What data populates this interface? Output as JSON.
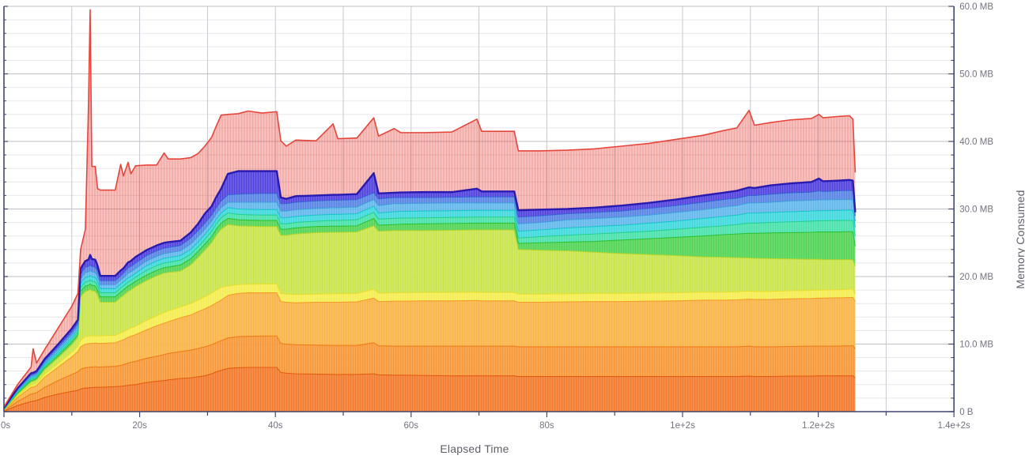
{
  "chart_data": {
    "type": "area",
    "title": "",
    "xlabel": "Elapsed Time",
    "ylabel": "Memory Consumed",
    "x_unit": "s",
    "y_unit": "MB",
    "xlim": [
      0,
      140
    ],
    "ylim": [
      0,
      60
    ],
    "grid": {
      "x_step": 10,
      "y_minor_step": 2,
      "y_major_step": 10
    },
    "legend_position": "none",
    "stacking": "values are cumulative stack-top boundaries in MB",
    "x_ticks": [
      {
        "t": 0,
        "label": "0s"
      },
      {
        "t": 10,
        "label": ""
      },
      {
        "t": 20,
        "label": "20s"
      },
      {
        "t": 30,
        "label": ""
      },
      {
        "t": 40,
        "label": "40s"
      },
      {
        "t": 50,
        "label": ""
      },
      {
        "t": 60,
        "label": "60s"
      },
      {
        "t": 70,
        "label": ""
      },
      {
        "t": 80,
        "label": "80s"
      },
      {
        "t": 90,
        "label": ""
      },
      {
        "t": 100,
        "label": "1e+2s"
      },
      {
        "t": 110,
        "label": ""
      },
      {
        "t": 120,
        "label": "1.2e+2s"
      },
      {
        "t": 130,
        "label": ""
      },
      {
        "t": 140,
        "label": "1.4e+2s"
      }
    ],
    "y_ticks": [
      {
        "v": 0,
        "label": "0 B"
      },
      {
        "v": 10,
        "label": "10.0 MB"
      },
      {
        "v": 20,
        "label": "20.0 MB"
      },
      {
        "v": 30,
        "label": "30.0 MB"
      },
      {
        "v": 40,
        "label": "40.0 MB"
      },
      {
        "v": 50,
        "label": "50.0 MB"
      },
      {
        "v": 60,
        "label": "60.0 MB"
      }
    ],
    "colors": {
      "axis": "#41466e",
      "grid_minor": "#e7e7ec",
      "grid_major": "#bfbfc8",
      "grid_vertical": "#c7c7cf",
      "tick_label": "#73737f",
      "axis_title": "#5f6068"
    },
    "x": [
      0,
      2,
      4,
      4.3,
      4.8,
      6,
      8,
      10,
      10.9,
      11.3,
      12,
      12.45,
      12.7,
      12.95,
      13.45,
      13.8,
      14.2,
      16.4,
      17.2,
      17.6,
      18.3,
      18.7,
      19.4,
      21,
      22.5,
      23.6,
      24.2,
      26,
      27.5,
      28.6,
      29.6,
      30.6,
      31.3,
      32,
      33,
      34.5,
      36,
      38,
      40.2,
      40.8,
      41.6,
      43,
      46,
      48.5,
      49.2,
      52,
      54.5,
      55.2,
      57.5,
      58.5,
      62,
      66,
      69.7,
      70.4,
      73,
      75.2,
      75.8,
      79,
      83,
      87,
      91,
      95,
      99,
      103,
      106,
      108,
      109.8,
      110.6,
      113,
      116,
      119,
      120.1,
      120.7,
      123,
      124.6,
      125.1,
      125.45
    ],
    "series": [
      {
        "name": "dark-orange",
        "fill": "#F2701D",
        "line": "#E45C10",
        "cum": [
          0.05,
          0.9,
          1.5,
          1.55,
          1.65,
          2.1,
          2.6,
          3.0,
          3.15,
          3.35,
          3.5,
          3.5,
          3.55,
          3.55,
          3.6,
          3.6,
          3.6,
          3.7,
          3.75,
          3.8,
          3.9,
          3.95,
          4.0,
          4.3,
          4.5,
          4.6,
          4.7,
          4.9,
          5.0,
          5.15,
          5.3,
          5.6,
          5.9,
          6.1,
          6.4,
          6.5,
          6.55,
          6.55,
          6.55,
          5.8,
          5.7,
          5.6,
          5.55,
          5.5,
          5.5,
          5.5,
          5.6,
          5.45,
          5.4,
          5.4,
          5.35,
          5.3,
          5.3,
          5.3,
          5.3,
          5.3,
          5.2,
          5.2,
          5.2,
          5.2,
          5.2,
          5.2,
          5.2,
          5.2,
          5.2,
          5.2,
          5.25,
          5.2,
          5.2,
          5.25,
          5.25,
          5.3,
          5.3,
          5.3,
          5.3,
          5.3,
          5.0
        ]
      },
      {
        "name": "orange",
        "fill": "#F78F28",
        "line": "#EE7D19",
        "cum": [
          0.1,
          1.5,
          2.6,
          2.65,
          2.8,
          3.6,
          4.6,
          5.5,
          5.9,
          6.3,
          6.5,
          6.55,
          6.6,
          6.6,
          6.65,
          6.6,
          6.6,
          6.7,
          6.85,
          6.95,
          7.2,
          7.3,
          7.45,
          7.9,
          8.2,
          8.45,
          8.6,
          8.9,
          9.1,
          9.35,
          9.6,
          9.9,
          10.2,
          10.5,
          10.9,
          11.1,
          11.15,
          11.2,
          11.2,
          10.1,
          10.0,
          9.9,
          9.85,
          9.8,
          9.8,
          9.8,
          10.2,
          9.75,
          9.7,
          9.7,
          9.7,
          9.7,
          9.7,
          9.7,
          9.7,
          9.7,
          9.6,
          9.6,
          9.6,
          9.6,
          9.6,
          9.6,
          9.6,
          9.6,
          9.6,
          9.6,
          9.7,
          9.6,
          9.6,
          9.65,
          9.7,
          9.7,
          9.7,
          9.7,
          9.75,
          9.75,
          9.3
        ]
      },
      {
        "name": "amber",
        "fill": "#F9AE38",
        "line": "#F29D27",
        "cum": [
          0.15,
          2.1,
          3.6,
          3.65,
          3.85,
          5.1,
          6.6,
          8.1,
          8.9,
          9.6,
          10.0,
          10.05,
          10.1,
          10.1,
          10.15,
          10.1,
          10.1,
          10.2,
          10.5,
          10.65,
          11.0,
          11.15,
          11.4,
          12.1,
          12.7,
          13.1,
          13.3,
          13.9,
          14.3,
          14.8,
          15.2,
          15.7,
          16.1,
          16.5,
          17.2,
          17.5,
          17.6,
          17.6,
          17.6,
          16.3,
          16.2,
          16.1,
          16.2,
          16.2,
          16.2,
          16.25,
          16.8,
          16.3,
          16.35,
          16.35,
          16.4,
          16.4,
          16.45,
          16.4,
          16.4,
          16.4,
          16.2,
          16.2,
          16.25,
          16.3,
          16.3,
          16.35,
          16.4,
          16.5,
          16.5,
          16.55,
          16.65,
          16.6,
          16.6,
          16.7,
          16.75,
          16.8,
          16.8,
          16.85,
          16.9,
          16.9,
          16.3
        ]
      },
      {
        "name": "yellow",
        "fill": "#F4EC43",
        "line": "#E8DE2E",
        "cum": [
          0.2,
          2.35,
          3.95,
          4.0,
          4.2,
          5.55,
          7.15,
          8.8,
          9.7,
          10.6,
          11.1,
          11.15,
          11.25,
          11.2,
          11.25,
          11.2,
          11.2,
          11.3,
          11.65,
          11.8,
          12.2,
          12.4,
          12.65,
          13.5,
          14.2,
          14.65,
          14.9,
          15.5,
          16.0,
          16.5,
          17.0,
          17.55,
          18.0,
          18.4,
          18.6,
          18.8,
          18.85,
          18.9,
          18.9,
          17.5,
          17.4,
          17.35,
          17.4,
          17.45,
          17.45,
          17.5,
          18.1,
          17.55,
          17.6,
          17.6,
          17.65,
          17.65,
          17.7,
          17.65,
          17.65,
          17.65,
          17.4,
          17.4,
          17.45,
          17.5,
          17.5,
          17.55,
          17.6,
          17.7,
          17.7,
          17.75,
          17.85,
          17.8,
          17.8,
          17.9,
          17.95,
          18.0,
          18.0,
          18.05,
          18.1,
          18.1,
          17.4
        ]
      },
      {
        "name": "chartreuse",
        "fill": "#C5E33C",
        "line": "#B3D52E",
        "cum": [
          0.25,
          2.6,
          4.4,
          4.45,
          4.7,
          6.2,
          8.0,
          9.9,
          11.0,
          17.0,
          17.8,
          17.9,
          18.1,
          17.9,
          17.8,
          17.2,
          16.2,
          16.2,
          16.9,
          17.2,
          17.8,
          18.0,
          18.5,
          19.4,
          20.1,
          20.5,
          20.6,
          20.8,
          21.7,
          22.8,
          23.9,
          25.0,
          26.1,
          27.0,
          27.7,
          27.5,
          27.45,
          27.4,
          27.4,
          26.1,
          26.1,
          26.3,
          26.5,
          26.55,
          26.55,
          26.6,
          27.5,
          26.7,
          26.8,
          26.8,
          26.8,
          26.85,
          26.9,
          26.9,
          26.9,
          26.9,
          24.0,
          23.9,
          23.8,
          23.6,
          23.4,
          23.25,
          23.1,
          22.9,
          22.85,
          22.8,
          22.75,
          22.7,
          22.65,
          22.6,
          22.55,
          22.55,
          22.5,
          22.5,
          22.5,
          22.45,
          21.5
        ]
      },
      {
        "name": "green",
        "fill": "#45D247",
        "line": "#2EC238",
        "cum": [
          0.3,
          2.7,
          4.6,
          4.65,
          4.9,
          6.45,
          8.3,
          10.3,
          11.4,
          17.8,
          18.6,
          18.7,
          18.9,
          18.7,
          18.6,
          18.0,
          17.0,
          17.0,
          17.7,
          18.0,
          18.6,
          18.8,
          19.3,
          20.2,
          20.9,
          21.3,
          21.4,
          21.7,
          22.6,
          23.7,
          24.8,
          25.9,
          27.0,
          27.9,
          28.6,
          28.4,
          28.35,
          28.3,
          28.3,
          27.0,
          27.0,
          27.2,
          27.4,
          27.45,
          27.45,
          27.5,
          28.6,
          27.6,
          27.7,
          27.75,
          27.8,
          27.85,
          27.9,
          27.9,
          27.9,
          27.9,
          24.9,
          25.0,
          25.1,
          25.2,
          25.4,
          25.6,
          25.8,
          26.0,
          26.2,
          26.3,
          26.4,
          26.4,
          26.45,
          26.5,
          26.55,
          26.6,
          26.6,
          26.6,
          26.65,
          26.6,
          24.5
        ]
      },
      {
        "name": "spring-green",
        "fill": "#3BE0A5",
        "line": "#26D190",
        "cum": [
          0.35,
          2.85,
          4.8,
          4.85,
          5.1,
          6.7,
          8.6,
          10.65,
          11.8,
          18.4,
          19.2,
          19.3,
          19.5,
          19.3,
          19.2,
          18.6,
          17.6,
          17.6,
          18.3,
          18.6,
          19.2,
          19.4,
          19.9,
          20.9,
          21.6,
          22.0,
          22.1,
          22.4,
          23.3,
          24.4,
          25.5,
          26.7,
          27.8,
          28.7,
          29.4,
          29.2,
          29.15,
          29.1,
          29.1,
          27.8,
          27.8,
          28.0,
          28.2,
          28.3,
          28.3,
          28.4,
          29.5,
          28.5,
          28.6,
          28.65,
          28.7,
          28.75,
          28.8,
          28.8,
          28.8,
          28.8,
          25.7,
          25.9,
          26.1,
          26.3,
          26.5,
          26.7,
          27.0,
          27.3,
          27.5,
          27.7,
          27.9,
          27.9,
          28.0,
          28.1,
          28.2,
          28.25,
          28.25,
          28.3,
          28.3,
          28.3,
          26.0
        ]
      },
      {
        "name": "cyan",
        "fill": "#30D6DC",
        "line": "#1DC4CC",
        "cum": [
          0.4,
          3.0,
          5.0,
          5.05,
          5.3,
          6.95,
          8.9,
          11.0,
          12.2,
          19.0,
          19.85,
          19.95,
          20.15,
          19.95,
          19.85,
          19.25,
          18.2,
          18.2,
          18.9,
          19.2,
          19.8,
          20.0,
          20.5,
          21.6,
          22.3,
          22.7,
          22.8,
          23.1,
          24.0,
          25.1,
          26.2,
          27.4,
          28.5,
          29.4,
          30.2,
          30.0,
          29.95,
          29.9,
          29.9,
          28.7,
          28.7,
          28.9,
          29.1,
          29.2,
          29.2,
          29.3,
          30.4,
          29.4,
          29.6,
          29.65,
          29.7,
          29.75,
          29.8,
          29.8,
          29.8,
          29.8,
          26.7,
          26.9,
          27.2,
          27.4,
          27.6,
          27.9,
          28.2,
          28.6,
          28.9,
          29.1,
          29.4,
          29.4,
          29.5,
          29.6,
          29.7,
          29.75,
          29.75,
          29.8,
          29.85,
          29.8,
          27.3
        ]
      },
      {
        "name": "sky-blue",
        "fill": "#57B1EA",
        "line": "#429DDD",
        "cum": [
          0.45,
          3.15,
          5.2,
          5.25,
          5.5,
          7.2,
          9.25,
          11.4,
          12.6,
          19.7,
          20.6,
          20.7,
          20.9,
          20.7,
          20.6,
          20.0,
          18.8,
          18.8,
          19.5,
          19.8,
          20.5,
          20.7,
          21.2,
          22.3,
          23.0,
          23.4,
          23.5,
          23.8,
          24.8,
          25.9,
          27.0,
          28.2,
          29.3,
          30.2,
          31.0,
          31.0,
          31.0,
          31.0,
          31.0,
          29.7,
          29.7,
          29.9,
          30.1,
          30.2,
          30.2,
          30.3,
          31.4,
          30.5,
          30.8,
          30.8,
          30.85,
          30.9,
          30.9,
          30.9,
          30.9,
          30.9,
          27.8,
          28.0,
          28.4,
          28.6,
          28.8,
          29.1,
          29.5,
          29.9,
          30.3,
          30.5,
          30.9,
          30.9,
          31.0,
          31.2,
          31.3,
          31.35,
          31.35,
          31.4,
          31.4,
          31.4,
          28.2
        ]
      },
      {
        "name": "blue",
        "fill": "#4C7BE3",
        "line": "#3862D4",
        "cum": [
          0.5,
          3.3,
          5.45,
          5.5,
          5.75,
          7.5,
          9.6,
          11.8,
          13.1,
          20.4,
          21.4,
          21.5,
          21.7,
          21.5,
          21.4,
          20.8,
          19.4,
          19.4,
          20.1,
          20.5,
          21.3,
          21.5,
          22.0,
          23.1,
          23.8,
          24.2,
          24.3,
          24.6,
          25.7,
          26.8,
          27.9,
          29.1,
          30.2,
          31.2,
          32.1,
          32.2,
          32.25,
          32.3,
          32.3,
          30.8,
          30.8,
          31.0,
          31.2,
          31.3,
          31.3,
          31.4,
          32.4,
          31.5,
          31.7,
          31.7,
          31.7,
          31.75,
          31.8,
          31.8,
          31.8,
          31.8,
          28.8,
          29.0,
          29.3,
          29.5,
          29.7,
          30.1,
          30.5,
          31.0,
          31.4,
          31.6,
          32.0,
          32.0,
          32.2,
          32.4,
          32.5,
          32.7,
          32.6,
          32.7,
          32.75,
          32.7,
          29.0
        ]
      },
      {
        "name": "indigo",
        "fill": "#4434DE",
        "line": "#2A1BB0",
        "cum": [
          0.55,
          3.45,
          5.7,
          5.75,
          6.0,
          7.8,
          10.0,
          12.3,
          13.6,
          21.2,
          22.3,
          22.5,
          23.2,
          22.6,
          22.5,
          21.6,
          20.1,
          20.1,
          20.9,
          21.2,
          22.1,
          22.3,
          22.9,
          23.9,
          24.6,
          25.0,
          25.1,
          25.3,
          26.5,
          27.8,
          29.3,
          30.4,
          31.8,
          33.0,
          35.2,
          35.6,
          35.6,
          35.6,
          35.6,
          31.7,
          31.5,
          31.9,
          32.0,
          32.1,
          32.1,
          32.2,
          35.3,
          32.3,
          32.4,
          32.45,
          32.5,
          32.5,
          33.0,
          32.6,
          32.6,
          32.6,
          29.8,
          29.9,
          30.0,
          30.2,
          30.5,
          30.9,
          31.4,
          32.0,
          32.4,
          32.7,
          33.2,
          33.1,
          33.5,
          33.8,
          34.0,
          34.5,
          34.1,
          34.2,
          34.3,
          34.2,
          29.5
        ]
      },
      {
        "name": "salmon-total",
        "fill": "rgba(231,66,55,0.33)",
        "line": "#E7453A",
        "cum": [
          0.7,
          4.0,
          6.6,
          9.3,
          7.2,
          9.2,
          12.4,
          15.6,
          17.5,
          24.0,
          27.0,
          45.0,
          59.5,
          36.3,
          36.3,
          33.0,
          32.8,
          32.8,
          36.6,
          34.9,
          36.9,
          35.2,
          36.4,
          36.5,
          36.5,
          38.3,
          37.4,
          37.4,
          37.6,
          38.2,
          39.3,
          40.6,
          42.3,
          43.9,
          44.0,
          44.1,
          44.5,
          44.2,
          44.4,
          40.1,
          39.3,
          40.2,
          40.1,
          42.6,
          40.4,
          40.5,
          43.5,
          40.8,
          41.9,
          41.3,
          41.3,
          41.4,
          43.3,
          41.5,
          41.5,
          41.5,
          38.6,
          38.6,
          38.7,
          38.9,
          39.3,
          39.7,
          40.3,
          40.9,
          41.6,
          42.0,
          44.6,
          42.4,
          42.8,
          43.2,
          43.4,
          44.0,
          43.5,
          43.7,
          43.8,
          43.3,
          35.4
        ]
      }
    ]
  }
}
